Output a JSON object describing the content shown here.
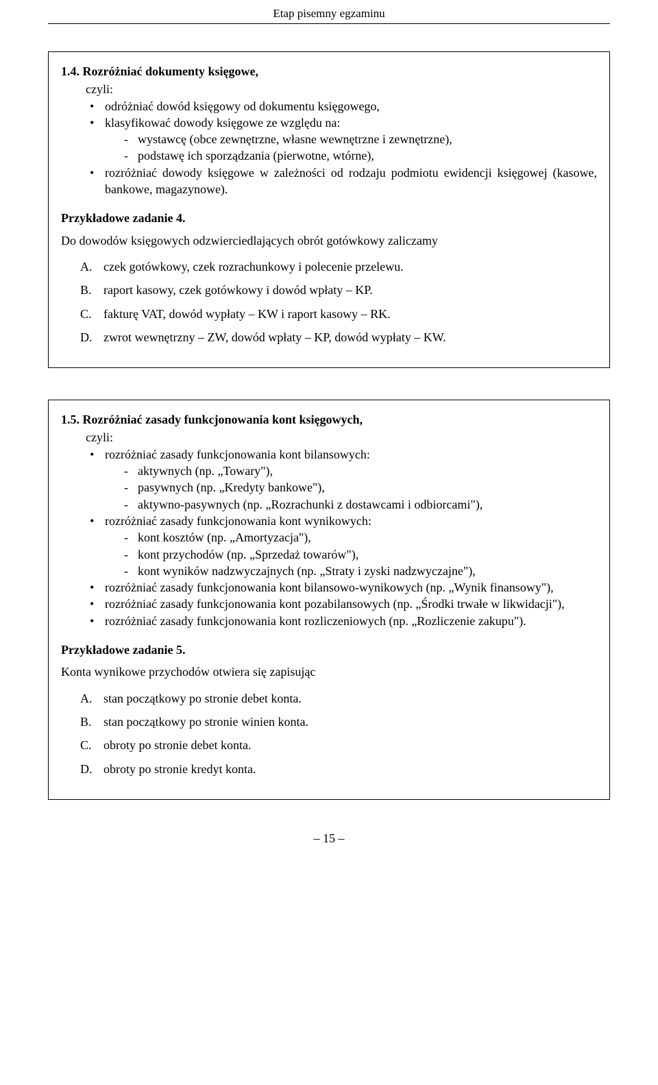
{
  "header": "Etap pisemny egzaminu",
  "box1": {
    "title": "1.4. Rozróżniać dokumenty księgowe,",
    "czyli": "czyli:",
    "bullets": [
      {
        "text": "odróżniać dowód księgowy od dokumentu księgowego,",
        "dashes": []
      },
      {
        "text": "klasyfikować dowody księgowe ze względu na:",
        "dashes": [
          "wystawcę (obce zewnętrzne, własne wewnętrzne i zewnętrzne),",
          "podstawę ich sporządzania (pierwotne, wtórne),"
        ]
      },
      {
        "text": "rozróżniać dowody księgowe w zależności od rodzaju podmiotu ewidencji księgowej (kasowe, bankowe, magazynowe).",
        "dashes": []
      }
    ],
    "sample_heading": "Przykładowe zadanie 4.",
    "question": "Do dowodów księgowych odzwierciedlających obrót gotówkowy zaliczamy",
    "answers": [
      {
        "letter": "A.",
        "text": "czek gotówkowy, czek rozrachunkowy i polecenie przelewu."
      },
      {
        "letter": "B.",
        "text": "raport kasowy, czek gotówkowy i dowód wpłaty – KP."
      },
      {
        "letter": "C.",
        "text": "fakturę VAT, dowód wypłaty – KW i raport kasowy – RK."
      },
      {
        "letter": "D.",
        "text": "zwrot wewnętrzny – ZW, dowód wpłaty – KP, dowód wypłaty – KW."
      }
    ]
  },
  "box2": {
    "title": "1.5. Rozróżniać zasady funkcjonowania kont księgowych,",
    "czyli": "czyli:",
    "bullets": [
      {
        "text": "rozróżniać zasady funkcjonowania kont bilansowych:",
        "dashes": [
          "aktywnych (np. „Towary\"),",
          "pasywnych (np. „Kredyty bankowe\"),",
          "aktywno-pasywnych (np. „Rozrachunki z dostawcami i odbiorcami\"),"
        ]
      },
      {
        "text": "rozróżniać zasady funkcjonowania kont wynikowych:",
        "dashes": [
          "kont kosztów (np. „Amortyzacja\"),",
          "kont przychodów (np. „Sprzedaż towarów\"),",
          "kont wyników nadzwyczajnych (np. „Straty i zyski nadzwyczajne\"),"
        ]
      },
      {
        "text": "rozróżniać zasady funkcjonowania kont bilansowo-wynikowych (np. „Wynik finansowy\"),",
        "dashes": []
      },
      {
        "text": "rozróżniać zasady funkcjonowania kont pozabilansowych (np. „Środki trwałe w likwidacji\"),",
        "dashes": []
      },
      {
        "text": "rozróżniać zasady funkcjonowania kont rozliczeniowych (np. „Rozliczenie zakupu\").",
        "dashes": []
      }
    ],
    "sample_heading": "Przykładowe zadanie 5.",
    "question": "Konta wynikowe przychodów otwiera się zapisując",
    "answers": [
      {
        "letter": "A.",
        "text": "stan początkowy po stronie debet konta."
      },
      {
        "letter": "B.",
        "text": "stan początkowy po stronie winien konta."
      },
      {
        "letter": "C.",
        "text": "obroty po stronie debet konta."
      },
      {
        "letter": "D.",
        "text": "obroty po stronie kredyt konta."
      }
    ]
  },
  "page_number": "– 15 –"
}
